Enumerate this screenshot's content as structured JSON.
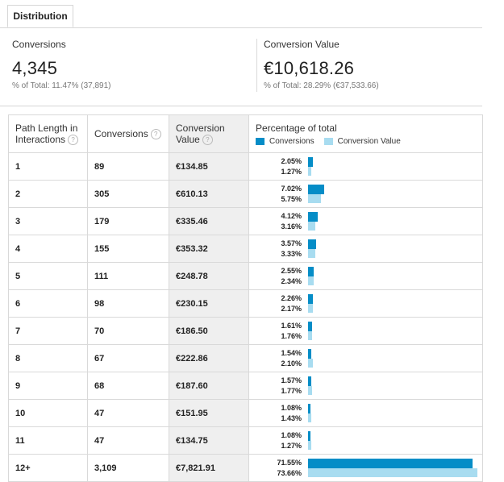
{
  "tabs": {
    "distribution": "Distribution"
  },
  "summary": {
    "conversions": {
      "label": "Conversions",
      "value": "4,345",
      "sub": "% of Total: 11.47% (37,891)"
    },
    "conversion_value": {
      "label": "Conversion Value",
      "value": "€10,618.26",
      "sub": "% of Total: 28.29% (€37,533.66)"
    }
  },
  "table": {
    "headers": {
      "path_length_line1": "Path Length in",
      "path_length_line2": "Interactions",
      "conversions": "Conversions",
      "conversion_value_line1": "Conversion",
      "conversion_value_line2": "Value",
      "percentage": "Percentage of total",
      "help_icon": "?"
    },
    "legend": {
      "conversions": "Conversions",
      "conversion_value": "Conversion Value"
    },
    "colors": {
      "conversions": "#058dc7",
      "conversion_value": "#a8dcf0"
    },
    "rows": [
      {
        "path": "1",
        "conversions": "89",
        "value": "€134.85",
        "pct_conv": "2.05%",
        "pct_val": "1.27%",
        "conv_pct": 2.05,
        "val_pct": 1.27
      },
      {
        "path": "2",
        "conversions": "305",
        "value": "€610.13",
        "pct_conv": "7.02%",
        "pct_val": "5.75%",
        "conv_pct": 7.02,
        "val_pct": 5.75
      },
      {
        "path": "3",
        "conversions": "179",
        "value": "€335.46",
        "pct_conv": "4.12%",
        "pct_val": "3.16%",
        "conv_pct": 4.12,
        "val_pct": 3.16
      },
      {
        "path": "4",
        "conversions": "155",
        "value": "€353.32",
        "pct_conv": "3.57%",
        "pct_val": "3.33%",
        "conv_pct": 3.57,
        "val_pct": 3.33
      },
      {
        "path": "5",
        "conversions": "111",
        "value": "€248.78",
        "pct_conv": "2.55%",
        "pct_val": "2.34%",
        "conv_pct": 2.55,
        "val_pct": 2.34
      },
      {
        "path": "6",
        "conversions": "98",
        "value": "€230.15",
        "pct_conv": "2.26%",
        "pct_val": "2.17%",
        "conv_pct": 2.26,
        "val_pct": 2.17
      },
      {
        "path": "7",
        "conversions": "70",
        "value": "€186.50",
        "pct_conv": "1.61%",
        "pct_val": "1.76%",
        "conv_pct": 1.61,
        "val_pct": 1.76
      },
      {
        "path": "8",
        "conversions": "67",
        "value": "€222.86",
        "pct_conv": "1.54%",
        "pct_val": "2.10%",
        "conv_pct": 1.54,
        "val_pct": 2.1
      },
      {
        "path": "9",
        "conversions": "68",
        "value": "€187.60",
        "pct_conv": "1.57%",
        "pct_val": "1.77%",
        "conv_pct": 1.57,
        "val_pct": 1.77
      },
      {
        "path": "10",
        "conversions": "47",
        "value": "€151.95",
        "pct_conv": "1.08%",
        "pct_val": "1.43%",
        "conv_pct": 1.08,
        "val_pct": 1.43
      },
      {
        "path": "11",
        "conversions": "47",
        "value": "€134.75",
        "pct_conv": "1.08%",
        "pct_val": "1.27%",
        "conv_pct": 1.08,
        "val_pct": 1.27
      },
      {
        "path": "12+",
        "conversions": "3,109",
        "value": "€7,821.91",
        "pct_conv": "71.55%",
        "pct_val": "73.66%",
        "conv_pct": 71.55,
        "val_pct": 73.66
      }
    ]
  }
}
